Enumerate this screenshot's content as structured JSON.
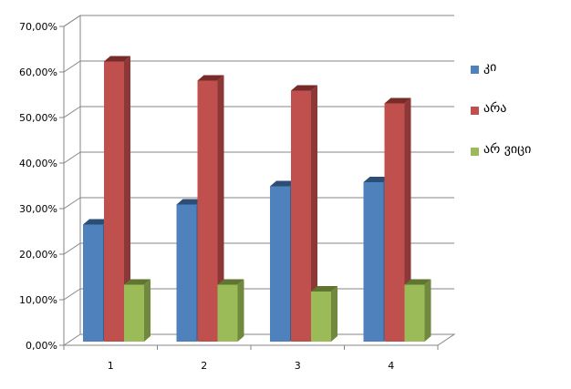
{
  "chart_data": {
    "type": "bar",
    "three_d": true,
    "categories": [
      "1",
      "2",
      "3",
      "4"
    ],
    "series": [
      {
        "name": "კი",
        "values": [
          0.257,
          0.301,
          0.341,
          0.35
        ],
        "color": "#4F81BD",
        "side": "#385D8A",
        "top": "#2C4D75"
      },
      {
        "name": "არა",
        "values": [
          0.615,
          0.573,
          0.551,
          0.523
        ],
        "color": "#C0504D",
        "side": "#8C3836",
        "top": "#772C2A"
      },
      {
        "name": "არ ვიცი",
        "values": [
          0.125,
          0.125,
          0.11,
          0.125
        ],
        "color": "#9BBB59",
        "side": "#71893F",
        "top": "#5F7530"
      }
    ],
    "ylim": [
      0,
      0.7
    ],
    "yticks": [
      "0,00%",
      "10,00%",
      "20,00%",
      "30,00%",
      "40,00%",
      "50,00%",
      "60,00%",
      "70,00%"
    ],
    "grid": true,
    "legend": "right",
    "title": "",
    "xlabel": "",
    "ylabel": ""
  }
}
